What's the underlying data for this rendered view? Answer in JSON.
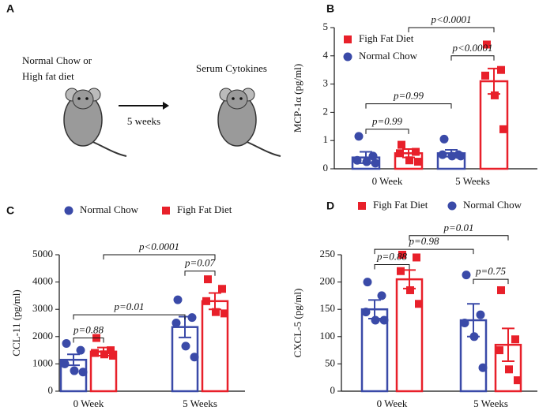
{
  "diagram": {
    "label": "A",
    "left_text": [
      "Normal Chow or",
      "High fat diet"
    ],
    "arrow_label": "5 weeks",
    "right_text": "Serum Cytokines"
  },
  "chart_data": [
    {
      "type": "bar",
      "panel": "B",
      "ylabel": "MCP-1α (pg/ml)",
      "categories": [
        "0 Week",
        "5 Weeks"
      ],
      "series": [
        {
          "name": "Normal Chow",
          "color": "#3a4aa8",
          "marker": "circle",
          "values": [
            0.4,
            0.55
          ],
          "errors": [
            0.2,
            0.12
          ],
          "points": [
            [
              1.15,
              0.45,
              0.3,
              0.25,
              0.2
            ],
            [
              1.05,
              0.5,
              0.5,
              0.45,
              0.45
            ]
          ]
        },
        {
          "name": "Figh Fat Diet",
          "color": "#e8202a",
          "marker": "square",
          "values": [
            0.55,
            3.1
          ],
          "errors": [
            0.15,
            0.45
          ],
          "points": [
            [
              0.85,
              0.6,
              0.55,
              0.3,
              0.25
            ],
            [
              4.4,
              3.5,
              3.3,
              2.6,
              1.4
            ]
          ]
        }
      ],
      "legend_order": [
        1,
        0
      ],
      "ylim": [
        0,
        5
      ],
      "yticks": [
        0,
        1,
        2,
        3,
        4,
        5
      ],
      "annotations": [
        {
          "text": "p=0.99",
          "y": 1.4,
          "left": [
            0,
            0
          ],
          "right": [
            1,
            0
          ]
        },
        {
          "text": "p=0.99",
          "y": 2.3,
          "left": [
            0,
            0
          ],
          "right": [
            0,
            1
          ]
        },
        {
          "text": "p<0.0001",
          "y": 4.0,
          "left": [
            0,
            1
          ],
          "right": [
            1,
            1
          ]
        },
        {
          "text": "p<0.0001",
          "y": 5.0,
          "left": [
            1,
            0
          ],
          "right": [
            1,
            1
          ]
        }
      ]
    },
    {
      "type": "bar",
      "panel": "C",
      "ylabel": "CCL-11 (pg/ml)",
      "categories": [
        "0 Week",
        "5 Weeks"
      ],
      "series": [
        {
          "name": "Normal Chow",
          "color": "#3a4aa8",
          "marker": "circle",
          "values": [
            1150,
            2350
          ],
          "errors": [
            200,
            380
          ],
          "points": [
            [
              1750,
              1500,
              1000,
              750,
              700
            ],
            [
              3350,
              2700,
              2500,
              1650,
              1250
            ]
          ]
        },
        {
          "name": "Figh Fat Diet",
          "color": "#e8202a",
          "marker": "square",
          "values": [
            1450,
            3300
          ],
          "errors": [
            150,
            300
          ],
          "points": [
            [
              1950,
              1500,
              1400,
              1350,
              1300
            ],
            [
              4100,
              3750,
              3300,
              2900,
              2850
            ]
          ]
        }
      ],
      "legend_order": [
        0,
        1
      ],
      "ylim": [
        0,
        5000
      ],
      "yticks": [
        0,
        1000,
        2000,
        3000,
        4000,
        5000
      ],
      "annotations": [
        {
          "text": "p=0.88",
          "y": 1950,
          "left": [
            0,
            0
          ],
          "right": [
            1,
            0
          ]
        },
        {
          "text": "p=0.01",
          "y": 2800,
          "left": [
            0,
            0
          ],
          "right": [
            0,
            1
          ]
        },
        {
          "text": "p=0.07",
          "y": 4400,
          "left": [
            0,
            1
          ],
          "right": [
            1,
            1
          ]
        },
        {
          "text": "p<0.0001",
          "y": 5000,
          "left": [
            1,
            0
          ],
          "right": [
            1,
            1
          ]
        }
      ]
    },
    {
      "type": "bar",
      "panel": "D",
      "ylabel": "CXCL-5 (pg/ml)",
      "categories": [
        "0 Week",
        "5 Weeks"
      ],
      "series": [
        {
          "name": "Normal Chow",
          "color": "#3a4aa8",
          "marker": "circle",
          "values": [
            150,
            130
          ],
          "errors": [
            17,
            30
          ],
          "points": [
            [
              200,
              175,
              145,
              130,
              130
            ],
            [
              213,
              140,
              125,
              100,
              43
            ]
          ]
        },
        {
          "name": "Figh Fat Diet",
          "color": "#e8202a",
          "marker": "square",
          "values": [
            205,
            85
          ],
          "errors": [
            17,
            30
          ],
          "points": [
            [
              250,
              245,
              220,
              185,
              160
            ],
            [
              185,
              95,
              75,
              40,
              20
            ]
          ]
        }
      ],
      "legend_order": [
        1,
        0
      ],
      "ylim": [
        0,
        250
      ],
      "yticks": [
        0,
        50,
        100,
        150,
        200,
        250
      ],
      "annotations": [
        {
          "text": "p=0.88",
          "y": 232,
          "left": [
            0,
            0
          ],
          "right": [
            1,
            0
          ]
        },
        {
          "text": "p=0.75",
          "y": 205,
          "left": [
            0,
            1
          ],
          "right": [
            1,
            1
          ]
        },
        {
          "text": "p=0.98",
          "y": 260,
          "left": [
            0,
            0
          ],
          "right": [
            0,
            1
          ]
        },
        {
          "text": "p=0.01",
          "y": 285,
          "left": [
            1,
            0
          ],
          "right": [
            1,
            1
          ]
        }
      ]
    }
  ]
}
